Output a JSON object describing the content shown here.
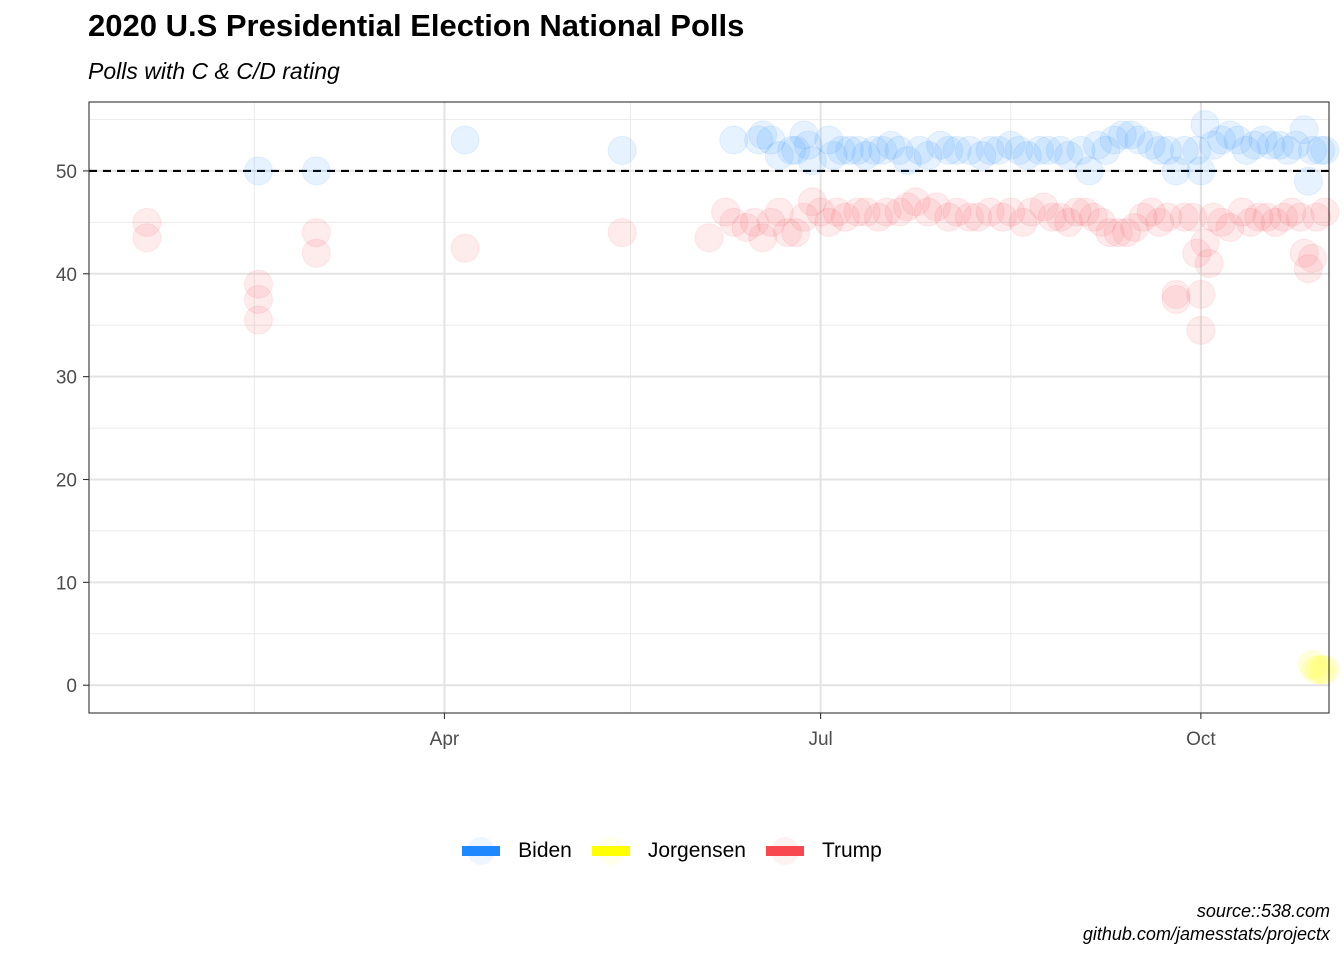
{
  "title": "2020 U.S Presidential Election National Polls",
  "subtitle": "Polls with C & C/D rating",
  "caption": {
    "line1": "source::538.com",
    "line2": "github.com/jamesstats/projectx"
  },
  "legend": [
    {
      "name": "Biden",
      "color": "#1E88FF"
    },
    {
      "name": "Jorgensen",
      "color": "#FFFF00"
    },
    {
      "name": "Trump",
      "color": "#F8474F"
    }
  ],
  "chart_data": {
    "type": "scatter",
    "title": "2020 U.S Presidential Election National Polls",
    "subtitle": "Polls with C & C/D rating",
    "xlabel": "",
    "ylabel": "",
    "x_type": "date",
    "xlim": [
      "2020-01-06",
      "2020-11-01"
    ],
    "ylim": [
      -2.7,
      56.7
    ],
    "x_ticks": [
      {
        "date": "2020-04-01",
        "label": "Apr"
      },
      {
        "date": "2020-07-01",
        "label": "Jul"
      },
      {
        "date": "2020-10-01",
        "label": "Oct"
      }
    ],
    "y_ticks": [
      0,
      10,
      20,
      30,
      40,
      50
    ],
    "reference_line": {
      "y": 50,
      "style": "dashed",
      "color": "#000000"
    },
    "grid": true,
    "legend_position": "bottom",
    "series": [
      {
        "name": "Biden",
        "color": "#1E88FF",
        "points": [
          [
            "2020-02-16",
            50
          ],
          [
            "2020-03-01",
            50
          ],
          [
            "2020-04-06",
            53
          ],
          [
            "2020-05-14",
            52
          ],
          [
            "2020-06-10",
            53
          ],
          [
            "2020-06-16",
            53
          ],
          [
            "2020-06-17",
            53.5
          ],
          [
            "2020-06-19",
            53
          ],
          [
            "2020-06-21",
            51.5
          ],
          [
            "2020-06-24",
            52
          ],
          [
            "2020-06-25",
            52
          ],
          [
            "2020-06-27",
            53.5
          ],
          [
            "2020-06-28",
            52.5
          ],
          [
            "2020-06-29",
            51
          ],
          [
            "2020-07-03",
            53
          ],
          [
            "2020-07-04",
            51.5
          ],
          [
            "2020-07-06",
            52
          ],
          [
            "2020-07-08",
            52
          ],
          [
            "2020-07-10",
            52
          ],
          [
            "2020-07-12",
            51.5
          ],
          [
            "2020-07-14",
            52
          ],
          [
            "2020-07-16",
            52
          ],
          [
            "2020-07-18",
            52.5
          ],
          [
            "2020-07-20",
            52
          ],
          [
            "2020-07-22",
            51
          ],
          [
            "2020-07-25",
            52
          ],
          [
            "2020-07-27",
            51.5
          ],
          [
            "2020-07-30",
            52.5
          ],
          [
            "2020-08-01",
            52
          ],
          [
            "2020-08-03",
            52
          ],
          [
            "2020-08-06",
            52
          ],
          [
            "2020-08-09",
            51.5
          ],
          [
            "2020-08-11",
            52
          ],
          [
            "2020-08-13",
            52
          ],
          [
            "2020-08-16",
            52.5
          ],
          [
            "2020-08-18",
            52
          ],
          [
            "2020-08-20",
            51.5
          ],
          [
            "2020-08-23",
            52
          ],
          [
            "2020-08-25",
            52
          ],
          [
            "2020-08-28",
            52
          ],
          [
            "2020-08-30",
            51.5
          ],
          [
            "2020-09-02",
            52
          ],
          [
            "2020-09-04",
            50
          ],
          [
            "2020-09-06",
            52.5
          ],
          [
            "2020-09-08",
            52
          ],
          [
            "2020-09-10",
            53
          ],
          [
            "2020-09-12",
            53.5
          ],
          [
            "2020-09-14",
            53.5
          ],
          [
            "2020-09-16",
            53
          ],
          [
            "2020-09-19",
            52.5
          ],
          [
            "2020-09-21",
            52
          ],
          [
            "2020-09-23",
            52
          ],
          [
            "2020-09-25",
            50
          ],
          [
            "2020-09-27",
            52
          ],
          [
            "2020-09-30",
            52
          ],
          [
            "2020-10-01",
            50
          ],
          [
            "2020-10-02",
            54.5
          ],
          [
            "2020-10-04",
            52.5
          ],
          [
            "2020-10-06",
            53
          ],
          [
            "2020-10-08",
            53.5
          ],
          [
            "2020-10-10",
            53
          ],
          [
            "2020-10-12",
            52
          ],
          [
            "2020-10-14",
            52.5
          ],
          [
            "2020-10-16",
            53
          ],
          [
            "2020-10-18",
            52.5
          ],
          [
            "2020-10-20",
            52.5
          ],
          [
            "2020-10-22",
            52
          ],
          [
            "2020-10-24",
            52.5
          ],
          [
            "2020-10-26",
            54
          ],
          [
            "2020-10-27",
            49
          ],
          [
            "2020-10-28",
            52
          ],
          [
            "2020-10-30",
            52
          ],
          [
            "2020-10-31",
            52
          ]
        ]
      },
      {
        "name": "Jorgensen",
        "color": "#FFFF00",
        "points": [
          [
            "2020-10-28",
            2
          ],
          [
            "2020-10-29",
            1.5
          ],
          [
            "2020-10-30",
            1.5
          ],
          [
            "2020-10-31",
            1.5
          ]
        ]
      },
      {
        "name": "Trump",
        "color": "#F8474F",
        "points": [
          [
            "2020-01-20",
            45
          ],
          [
            "2020-01-20",
            43.5
          ],
          [
            "2020-02-16",
            39
          ],
          [
            "2020-02-16",
            37.5
          ],
          [
            "2020-02-16",
            35.5
          ],
          [
            "2020-03-01",
            44
          ],
          [
            "2020-03-01",
            42
          ],
          [
            "2020-04-06",
            42.5
          ],
          [
            "2020-05-14",
            44
          ],
          [
            "2020-06-04",
            43.5
          ],
          [
            "2020-06-08",
            46
          ],
          [
            "2020-06-10",
            45
          ],
          [
            "2020-06-13",
            44.5
          ],
          [
            "2020-06-15",
            45
          ],
          [
            "2020-06-17",
            43.5
          ],
          [
            "2020-06-19",
            45
          ],
          [
            "2020-06-21",
            46
          ],
          [
            "2020-06-23",
            44
          ],
          [
            "2020-06-25",
            44
          ],
          [
            "2020-06-27",
            45.5
          ],
          [
            "2020-06-29",
            47
          ],
          [
            "2020-07-01",
            46
          ],
          [
            "2020-07-03",
            45
          ],
          [
            "2020-07-05",
            46
          ],
          [
            "2020-07-07",
            45.5
          ],
          [
            "2020-07-10",
            46
          ],
          [
            "2020-07-12",
            46
          ],
          [
            "2020-07-15",
            45.5
          ],
          [
            "2020-07-17",
            46
          ],
          [
            "2020-07-20",
            46
          ],
          [
            "2020-07-22",
            46.5
          ],
          [
            "2020-07-24",
            47
          ],
          [
            "2020-07-27",
            46
          ],
          [
            "2020-07-29",
            46.5
          ],
          [
            "2020-08-01",
            45.5
          ],
          [
            "2020-08-03",
            46
          ],
          [
            "2020-08-06",
            45.5
          ],
          [
            "2020-08-08",
            45.5
          ],
          [
            "2020-08-11",
            46
          ],
          [
            "2020-08-14",
            45.5
          ],
          [
            "2020-08-16",
            46
          ],
          [
            "2020-08-19",
            45
          ],
          [
            "2020-08-21",
            46
          ],
          [
            "2020-08-24",
            46.5
          ],
          [
            "2020-08-26",
            45.5
          ],
          [
            "2020-08-28",
            45.5
          ],
          [
            "2020-08-30",
            45
          ],
          [
            "2020-09-01",
            46
          ],
          [
            "2020-09-03",
            46
          ],
          [
            "2020-09-05",
            45.5
          ],
          [
            "2020-09-07",
            45
          ],
          [
            "2020-09-09",
            44
          ],
          [
            "2020-09-11",
            44
          ],
          [
            "2020-09-13",
            44
          ],
          [
            "2020-09-15",
            44.5
          ],
          [
            "2020-09-17",
            45.5
          ],
          [
            "2020-09-19",
            46
          ],
          [
            "2020-09-21",
            45
          ],
          [
            "2020-09-23",
            45.5
          ],
          [
            "2020-09-25",
            37.5
          ],
          [
            "2020-09-25",
            38
          ],
          [
            "2020-09-27",
            45.5
          ],
          [
            "2020-09-29",
            45.5
          ],
          [
            "2020-09-30",
            42
          ],
          [
            "2020-10-01",
            38
          ],
          [
            "2020-10-01",
            34.5
          ],
          [
            "2020-10-02",
            43
          ],
          [
            "2020-10-03",
            41
          ],
          [
            "2020-10-04",
            45.5
          ],
          [
            "2020-10-06",
            45
          ],
          [
            "2020-10-08",
            44.5
          ],
          [
            "2020-10-11",
            46
          ],
          [
            "2020-10-13",
            45
          ],
          [
            "2020-10-15",
            45.5
          ],
          [
            "2020-10-17",
            45.5
          ],
          [
            "2020-10-19",
            45
          ],
          [
            "2020-10-21",
            45.5
          ],
          [
            "2020-10-23",
            46
          ],
          [
            "2020-10-25",
            45.5
          ],
          [
            "2020-10-26",
            42
          ],
          [
            "2020-10-27",
            40.5
          ],
          [
            "2020-10-28",
            41.5
          ],
          [
            "2020-10-29",
            45.5
          ],
          [
            "2020-10-31",
            46
          ]
        ]
      }
    ]
  }
}
